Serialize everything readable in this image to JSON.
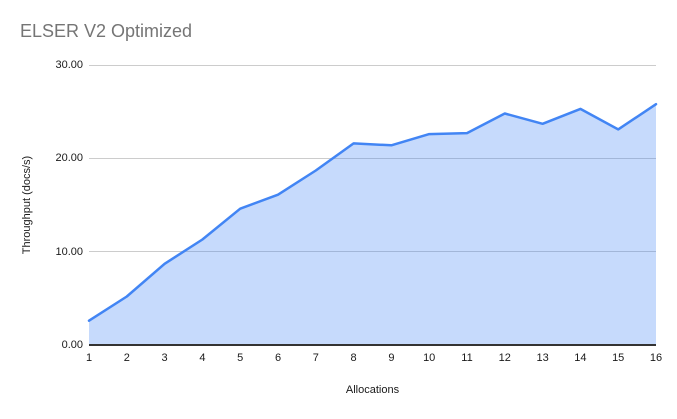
{
  "header": {
    "title": "ELSER V2 Optimized"
  },
  "chart_data": {
    "type": "area",
    "title": "ELSER V2 Optimized",
    "xlabel": "Allocations",
    "ylabel": "Throughput (docs/s)",
    "categories": [
      "1",
      "2",
      "3",
      "4",
      "5",
      "6",
      "7",
      "8",
      "9",
      "10",
      "11",
      "12",
      "13",
      "14",
      "15",
      "16"
    ],
    "series": [
      {
        "name": "Throughput",
        "values": [
          2.6,
          5.2,
          8.7,
          11.3,
          14.6,
          16.1,
          18.7,
          21.6,
          21.4,
          22.6,
          22.7,
          24.8,
          23.7,
          25.3,
          23.1,
          25.8
        ]
      }
    ],
    "ylim": [
      0,
      30
    ],
    "yticks": [
      {
        "value": 30,
        "label": "30.00"
      },
      {
        "value": 20,
        "label": "20.00"
      },
      {
        "value": 10,
        "label": "10.00"
      },
      {
        "value": 0,
        "label": "0.00"
      }
    ],
    "grid": true,
    "legend": "none",
    "colors": {
      "line": "#4285f4",
      "fill": "rgba(66,133,244,0.30)",
      "gridline": "#cccccc",
      "axis_line": "#333333",
      "title_text": "#757575",
      "tick_text": "#1a1a1a"
    }
  }
}
